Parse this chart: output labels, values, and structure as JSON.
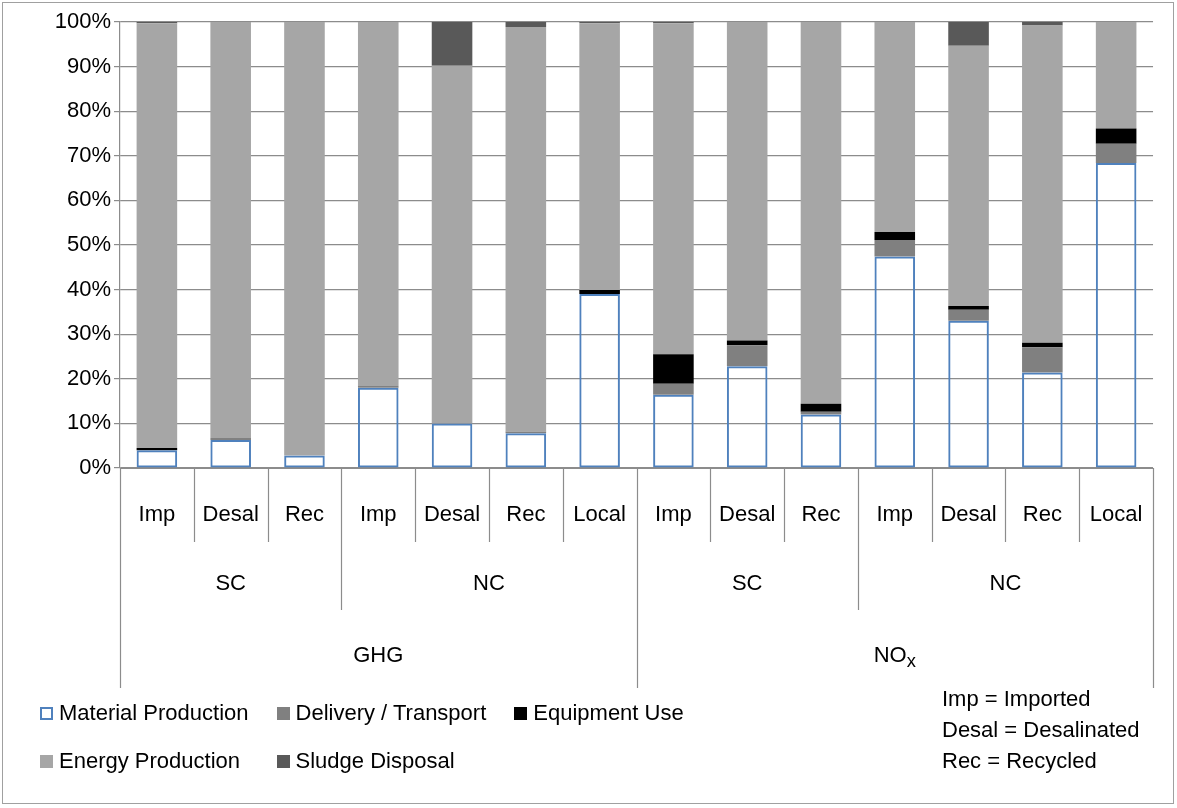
{
  "chart_data": {
    "type": "bar",
    "stacked": true,
    "grid": "y",
    "legend": "bottom left",
    "categories": [
      "Imp",
      "Desal",
      "Rec",
      "Imp",
      "Desal",
      "Rec",
      "Local",
      "Imp",
      "Desal",
      "Rec",
      "Imp",
      "Desal",
      "Rec",
      "Local"
    ],
    "ylim": [
      0,
      100
    ],
    "yticks": [
      {
        "value": 0,
        "label": "0%"
      },
      {
        "value": 10,
        "label": "10%"
      },
      {
        "value": 20,
        "label": "20%"
      },
      {
        "value": 30,
        "label": "30%"
      },
      {
        "value": 40,
        "label": "40%"
      },
      {
        "value": 50,
        "label": "50%"
      },
      {
        "value": 60,
        "label": "60%"
      },
      {
        "value": 70,
        "label": "70%"
      },
      {
        "value": 80,
        "label": "80%"
      },
      {
        "value": 90,
        "label": "90%"
      },
      {
        "value": 100,
        "label": "100%"
      }
    ],
    "series": [
      {
        "name": "Material Production",
        "color": "#4f81bd",
        "values": [
          4,
          6.3,
          2.8,
          18,
          10,
          7.8,
          39,
          16.4,
          22.8,
          12,
          47.4,
          33,
          21.4,
          68.4
        ]
      },
      {
        "name": "Delivery / Transport",
        "color": "#808080",
        "values": [
          0,
          0.4,
          0,
          0.4,
          0,
          0.4,
          0,
          2.5,
          4.7,
          0.6,
          3.7,
          2.5,
          5.7,
          4.3
        ]
      },
      {
        "name": "Equipment Use",
        "color": "#000000",
        "values": [
          0.5,
          0,
          0,
          0,
          0,
          0,
          0.9,
          6.6,
          1.1,
          1.8,
          1.8,
          0.8,
          1,
          3.4
        ]
      },
      {
        "name": "Energy Production",
        "color": "#a6a6a6",
        "values": [
          95.2,
          93.3,
          97.2,
          81.6,
          80.2,
          90.7,
          59.8,
          74.2,
          71.4,
          85.6,
          47.1,
          58.4,
          71.1,
          23.9
        ]
      },
      {
        "name": "Sludge Disposal",
        "color": "#595959",
        "values": [
          0.3,
          0,
          0,
          0,
          9.8,
          1.1,
          0.3,
          0.3,
          0,
          0,
          0,
          5.3,
          0.8,
          0
        ]
      }
    ],
    "annotations": [
      "SC",
      "NC",
      "SC",
      "NC",
      "GHG",
      "NO$_{x}$",
      "Imp = Imported",
      "Desal = Desalinated",
      "Rec = Recycled"
    ]
  }
}
